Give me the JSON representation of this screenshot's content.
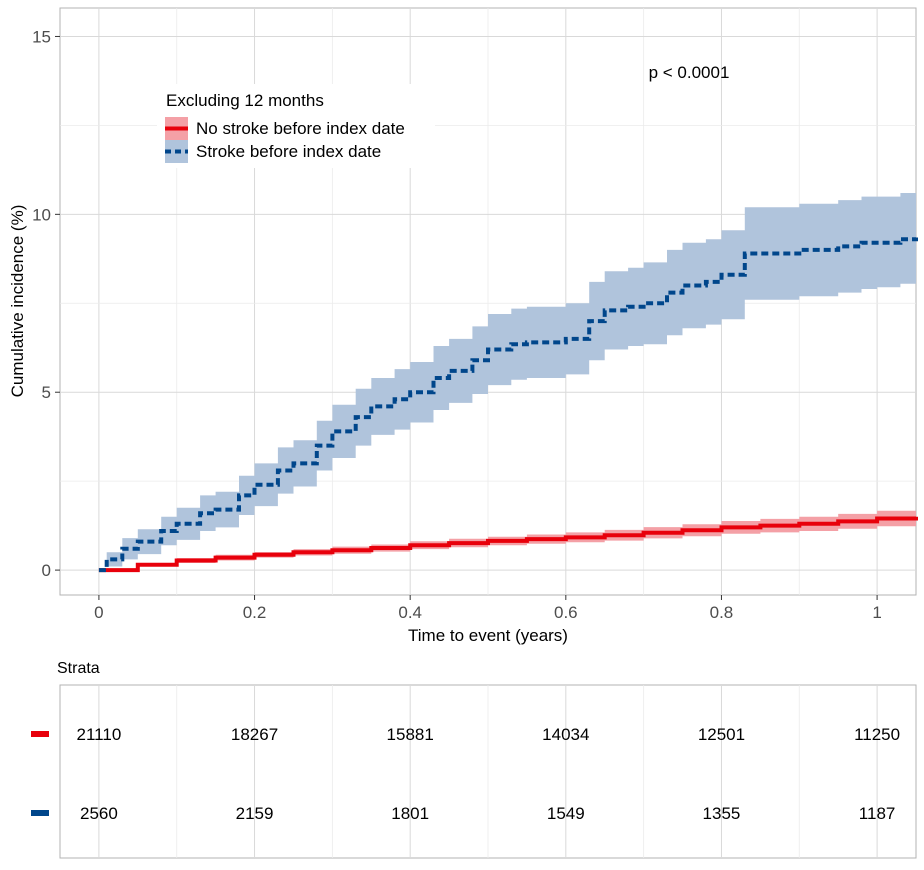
{
  "chart_data": [
    {
      "type": "line",
      "title": "",
      "xlabel": "Time to event (years)",
      "ylabel": "Cumulative incidence (%)",
      "xlim": [
        -0.05,
        1.05
      ],
      "ylim": [
        -0.7,
        15.8
      ],
      "xticks": [
        0,
        0.2,
        0.4,
        0.6,
        0.8,
        1
      ],
      "xtick_labels": [
        "0",
        "0.2",
        "0.4",
        "0.6",
        "0.8",
        "1"
      ],
      "yticks": [
        0,
        5,
        10,
        15
      ],
      "ytick_labels": [
        "0",
        "5",
        "10",
        "15"
      ],
      "grid": true,
      "annotation": "p < 0.0001",
      "legend": {
        "title": "Excluding 12 months",
        "placement": "top-left",
        "entries": [
          "No stroke before index date",
          "Stroke before index date"
        ]
      },
      "series": [
        {
          "name": "No stroke before index date",
          "color": "#e8000b",
          "line_style": "solid",
          "ribbon_color": "#f4a0a6",
          "x": [
            0,
            0.05,
            0.1,
            0.15,
            0.2,
            0.25,
            0.3,
            0.35,
            0.4,
            0.45,
            0.5,
            0.55,
            0.6,
            0.65,
            0.7,
            0.75,
            0.8,
            0.85,
            0.9,
            0.95,
            1.0,
            1.05
          ],
          "y": [
            0,
            0.15,
            0.27,
            0.35,
            0.43,
            0.5,
            0.56,
            0.62,
            0.7,
            0.76,
            0.82,
            0.87,
            0.92,
            0.98,
            1.05,
            1.12,
            1.2,
            1.25,
            1.3,
            1.37,
            1.45,
            1.5
          ],
          "y_lower": [
            0,
            0.1,
            0.2,
            0.27,
            0.35,
            0.41,
            0.46,
            0.52,
            0.59,
            0.64,
            0.7,
            0.74,
            0.78,
            0.83,
            0.89,
            0.95,
            1.02,
            1.06,
            1.1,
            1.16,
            1.23,
            1.27
          ],
          "y_upper": [
            0,
            0.2,
            0.34,
            0.43,
            0.51,
            0.59,
            0.66,
            0.72,
            0.81,
            0.88,
            0.94,
            1.0,
            1.06,
            1.13,
            1.21,
            1.29,
            1.38,
            1.44,
            1.5,
            1.58,
            1.67,
            1.73
          ]
        },
        {
          "name": "Stroke before index date",
          "color": "#00468b",
          "line_style": "dashed",
          "ribbon_color": "#b0c4dc",
          "x": [
            0,
            0.01,
            0.03,
            0.05,
            0.08,
            0.1,
            0.13,
            0.15,
            0.18,
            0.2,
            0.23,
            0.25,
            0.28,
            0.3,
            0.33,
            0.35,
            0.38,
            0.4,
            0.43,
            0.45,
            0.48,
            0.5,
            0.53,
            0.55,
            0.58,
            0.6,
            0.63,
            0.65,
            0.68,
            0.7,
            0.73,
            0.75,
            0.78,
            0.8,
            0.83,
            0.85,
            0.88,
            0.9,
            0.93,
            0.95,
            0.98,
            1.0,
            1.03,
            1.05
          ],
          "y": [
            0,
            0.3,
            0.6,
            0.8,
            1.1,
            1.3,
            1.6,
            1.7,
            2.1,
            2.4,
            2.8,
            3.0,
            3.5,
            3.9,
            4.3,
            4.6,
            4.8,
            5.0,
            5.4,
            5.6,
            5.9,
            6.2,
            6.35,
            6.4,
            6.4,
            6.5,
            7.0,
            7.3,
            7.4,
            7.5,
            7.8,
            8.0,
            8.1,
            8.3,
            8.9,
            8.9,
            8.9,
            9.0,
            9.0,
            9.1,
            9.2,
            9.2,
            9.3,
            9.35
          ],
          "y_lower": [
            0,
            0.1,
            0.3,
            0.45,
            0.7,
            0.85,
            1.1,
            1.2,
            1.55,
            1.8,
            2.15,
            2.35,
            2.8,
            3.15,
            3.5,
            3.8,
            3.95,
            4.15,
            4.5,
            4.7,
            4.95,
            5.2,
            5.35,
            5.4,
            5.4,
            5.5,
            5.9,
            6.2,
            6.3,
            6.35,
            6.6,
            6.8,
            6.9,
            7.05,
            7.6,
            7.6,
            7.6,
            7.7,
            7.7,
            7.8,
            7.9,
            7.95,
            8.05,
            8.1
          ],
          "y_upper": [
            0,
            0.5,
            0.9,
            1.15,
            1.5,
            1.75,
            2.1,
            2.2,
            2.65,
            3.0,
            3.45,
            3.65,
            4.2,
            4.65,
            5.1,
            5.4,
            5.65,
            5.85,
            6.3,
            6.5,
            6.85,
            7.2,
            7.35,
            7.4,
            7.4,
            7.5,
            8.1,
            8.4,
            8.5,
            8.65,
            9.0,
            9.2,
            9.3,
            9.55,
            10.2,
            10.2,
            10.2,
            10.3,
            10.3,
            10.4,
            10.5,
            10.5,
            10.6,
            10.65
          ]
        }
      ]
    },
    {
      "type": "table",
      "title": "Strata",
      "columns_x": [
        0,
        0.2,
        0.4,
        0.6,
        0.8,
        1
      ],
      "rows": [
        {
          "color": "#e8000b",
          "values": [
            "21110",
            "18267",
            "15881",
            "14034",
            "12501",
            "11250"
          ]
        },
        {
          "color": "#00468b",
          "values": [
            "2560",
            "2159",
            "1801",
            "1549",
            "1355",
            "1187"
          ]
        }
      ]
    }
  ]
}
